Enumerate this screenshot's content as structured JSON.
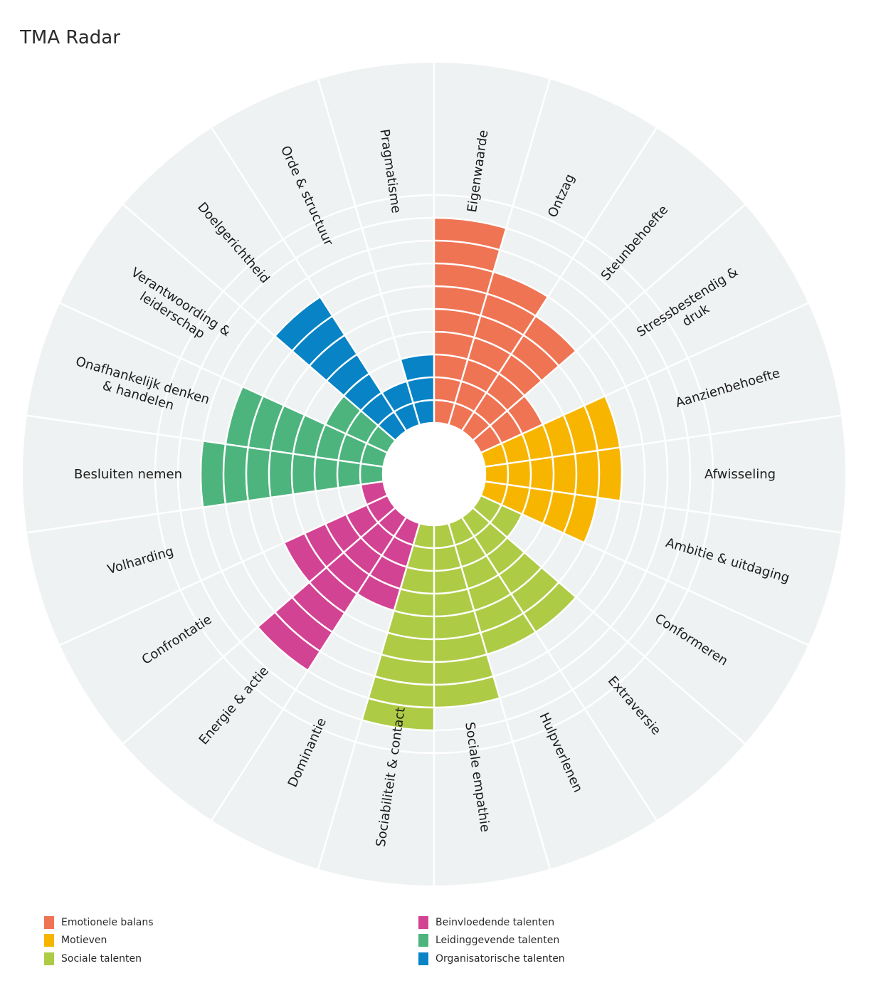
{
  "title": "TMA Radar",
  "colors": {
    "background_disc": "#eff2f2",
    "grid_lines": "#ffffff"
  },
  "legend": [
    {
      "label": "Emotionele balans",
      "color": "#ef7454"
    },
    {
      "label": "Motieven",
      "color": "#f7b500"
    },
    {
      "label": "Sociale talenten",
      "color": "#aecb46"
    },
    {
      "label": "Beinvloedende talenten",
      "color": "#d34393"
    },
    {
      "label": "Leidinggevende talenten",
      "color": "#4db47e"
    },
    {
      "label": "Organisatorische talenten",
      "color": "#0783c6"
    }
  ],
  "chart_data": {
    "type": "polar-bar",
    "title": "TMA Radar",
    "scale": {
      "min": 0,
      "max": 10,
      "rings": 10,
      "ticks": [
        1,
        2,
        3,
        4,
        5,
        6,
        7,
        8,
        9,
        10
      ]
    },
    "start": "top, clockwise",
    "categories": [
      {
        "label": "Eigenwaarde",
        "value": 9,
        "group": "Emotionele balans"
      },
      {
        "label": "Ontzag",
        "value": 7,
        "group": "Emotionele balans"
      },
      {
        "label": "Steunbehoefte",
        "value": 6,
        "group": "Emotionele balans"
      },
      {
        "label": "Stressbestendig & druk",
        "value": 3,
        "group": "Emotionele balans"
      },
      {
        "label": "Aanzienbehoefte",
        "value": 6,
        "group": "Motieven"
      },
      {
        "label": "Afwisseling",
        "value": 6,
        "group": "Motieven"
      },
      {
        "label": "Ambitie & uitdaging",
        "value": 5,
        "group": "Motieven"
      },
      {
        "label": "Conformeren",
        "value": 2,
        "group": "Sociale talenten"
      },
      {
        "label": "Extraversie",
        "value": 6,
        "group": "Sociale talenten"
      },
      {
        "label": "Hulpverlenen",
        "value": 6,
        "group": "Sociale talenten"
      },
      {
        "label": "Sociale empathie",
        "value": 8,
        "group": "Sociale talenten"
      },
      {
        "label": "Sociabiliteit & contact",
        "value": 9,
        "group": "Sociale talenten"
      },
      {
        "label": "Dominantie",
        "value": 4,
        "group": "Beinvloedende talenten"
      },
      {
        "label": "Energie & actie",
        "value": 8,
        "group": "Beinvloedende talenten"
      },
      {
        "label": "Confrontatie",
        "value": 5,
        "group": "Beinvloedende talenten"
      },
      {
        "label": "Volharding",
        "value": 1,
        "group": "Beinvloedende talenten"
      },
      {
        "label": "Besluiten nemen",
        "value": 8,
        "group": "Leidinggevende talenten"
      },
      {
        "label": "Onafhankelijk denken & handelen",
        "value": 7,
        "group": "Leidinggevende talenten"
      },
      {
        "label": "Verantwoording & leiderschap",
        "value": 3,
        "group": "Leidinggevende talenten"
      },
      {
        "label": "Doelgerichtheid",
        "value": 7,
        "group": "Organisatorische talenten"
      },
      {
        "label": "Orde & structuur",
        "value": 2,
        "group": "Organisatorische talenten"
      },
      {
        "label": "Pragmatisme",
        "value": 3,
        "group": "Organisatorische talenten"
      }
    ]
  }
}
